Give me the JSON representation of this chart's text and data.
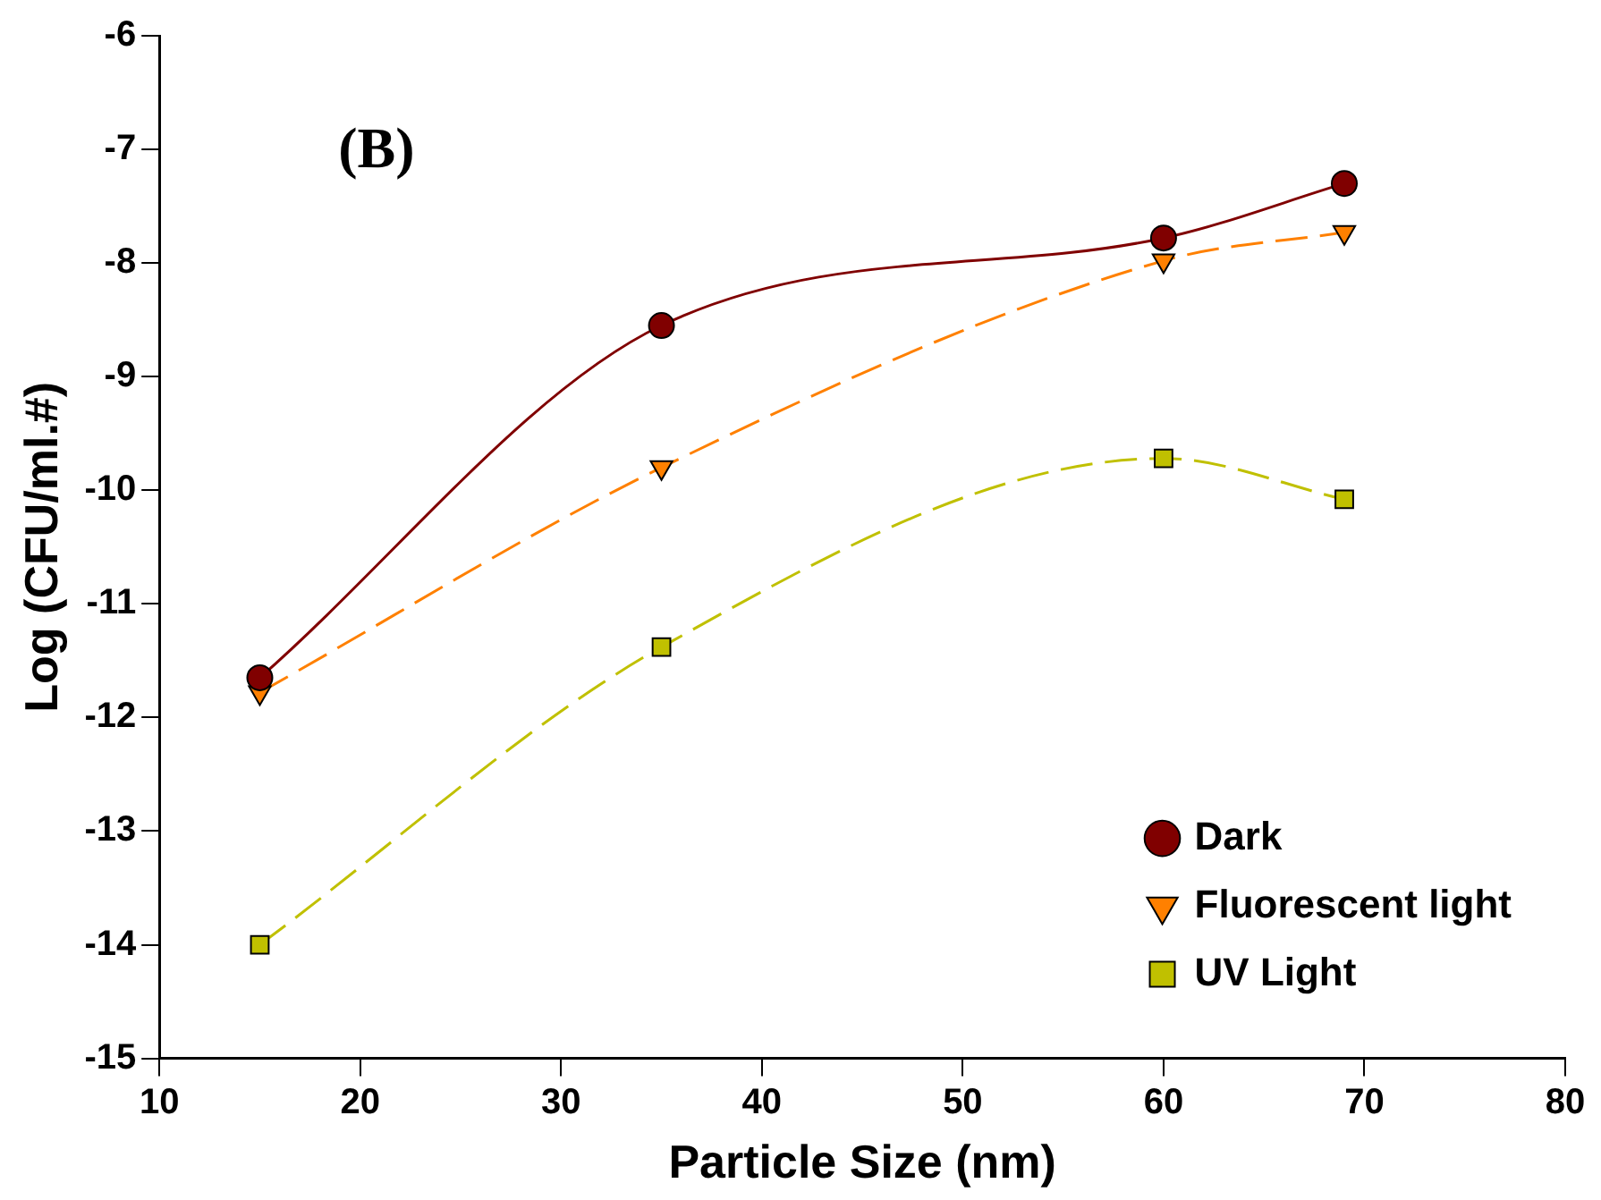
{
  "chart_data": {
    "type": "line",
    "xlabel": "Particle Size (nm)",
    "ylabel": "Log (CFU/ml.#)",
    "annotations": [
      "(B)"
    ],
    "x": [
      15,
      35,
      60,
      69
    ],
    "series": [
      {
        "name": "Dark",
        "color": "#800000",
        "values": [
          -11.65,
          -8.55,
          -7.78,
          -7.3
        ],
        "marker": "circle",
        "line_style": "solid"
      },
      {
        "name": "Fluorescent light",
        "color": "#ff8000",
        "values": [
          -11.78,
          -9.8,
          -7.98,
          -7.73
        ],
        "marker": "triangle",
        "line_style": "dashed"
      },
      {
        "name": "UV Light",
        "color": "#c0c000",
        "values": [
          -14.0,
          -11.38,
          -9.72,
          -10.08
        ],
        "marker": "square",
        "line_style": "dashed"
      }
    ],
    "xlim": [
      10,
      80
    ],
    "xticks": [
      10,
      20,
      30,
      40,
      50,
      60,
      70,
      80
    ],
    "ylim": [
      -15,
      -6
    ],
    "yticks": [
      -15,
      -14,
      -13,
      -12,
      -11,
      -10,
      -9,
      -8,
      -7,
      -6
    ],
    "grid": false,
    "legend": "bottom right"
  }
}
